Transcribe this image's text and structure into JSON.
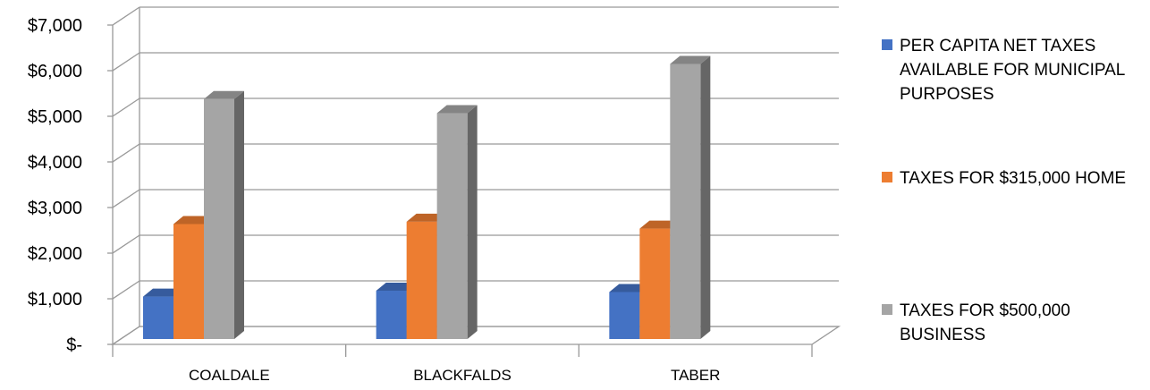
{
  "chart_data": {
    "type": "bar",
    "title": "",
    "xlabel": "",
    "ylabel": "",
    "categories": [
      "COALDALE",
      "BLACKFALDS",
      "TABER"
    ],
    "series": [
      {
        "name": "PER CAPITA NET TAXES AVAILABLE FOR MUNICIPAL PURPOSES",
        "color": "#4472C4",
        "values": [
          930,
          1060,
          1030
        ]
      },
      {
        "name": "TAXES FOR $315,000 HOME",
        "color": "#ED7D31",
        "values": [
          2520,
          2570,
          2420
        ]
      },
      {
        "name": "TAXES FOR $500,000 BUSINESS",
        "color": "#A5A5A5",
        "values": [
          5260,
          4950,
          6030
        ]
      }
    ],
    "ylim": [
      0,
      7000
    ],
    "yticks": [
      "$-",
      "$1,000",
      "$2,000",
      "$3,000",
      "$4,000",
      "$5,000",
      "$6,000",
      "$7,000"
    ],
    "grid": true,
    "three_d": true,
    "legend_position": "right"
  }
}
